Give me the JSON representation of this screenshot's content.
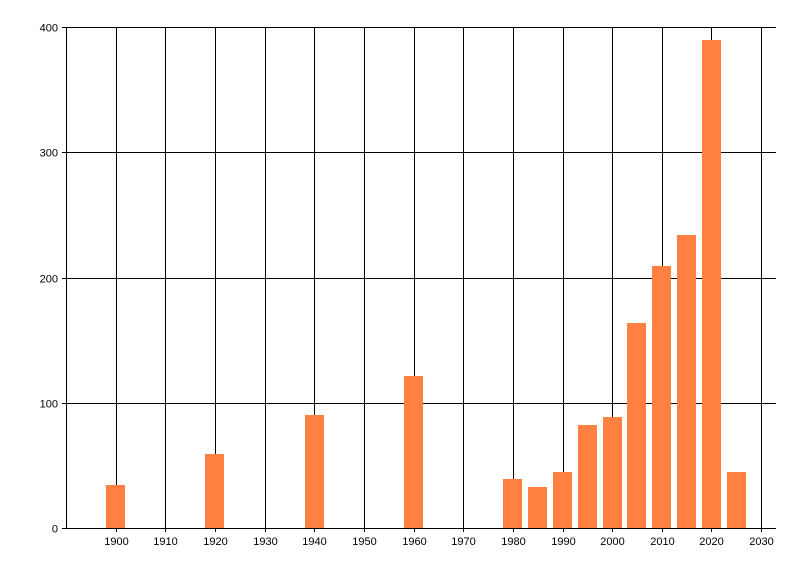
{
  "chart_data": {
    "type": "bar",
    "title": "",
    "xlabel": "",
    "ylabel": "",
    "xlim": [
      1890,
      2033
    ],
    "ylim": [
      0,
      400
    ],
    "x_ticks": [
      1900,
      1910,
      1920,
      1930,
      1940,
      1950,
      1960,
      1970,
      1980,
      1990,
      2000,
      2010,
      2020,
      2030
    ],
    "y_ticks": [
      0,
      100,
      200,
      300,
      400
    ],
    "grid": true,
    "legend": "none",
    "bar_color": "#ff8040",
    "series": [
      {
        "x": [
          1900,
          1920,
          1940,
          1960,
          1980,
          1985,
          1990,
          1995,
          2000,
          2005,
          2010,
          2015,
          2020,
          2025
        ],
        "values": [
          34,
          59,
          90,
          121,
          39,
          33,
          45,
          82,
          89,
          164,
          209,
          234,
          390,
          45
        ]
      }
    ]
  }
}
